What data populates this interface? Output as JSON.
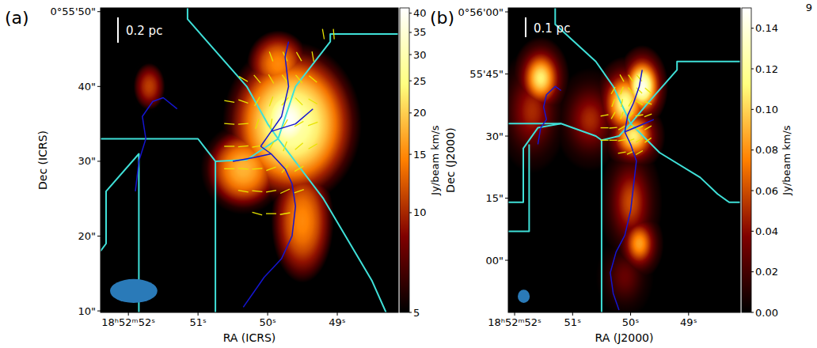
{
  "page_number": "9",
  "chart_data": [
    {
      "type": "image",
      "panel_label": "(a)",
      "scale_bar": "0.2 pc",
      "xlabel": "RA (ICRS)",
      "ylabel": "Dec (ICRS)",
      "xlim": [
        52.4,
        48.125
      ],
      "xticks": [
        {
          "value": 52,
          "label": "18ʰ52ᵐ52ˢ"
        },
        {
          "value": 51,
          "label": "51ˢ"
        },
        {
          "value": 50,
          "label": "50ˢ"
        },
        {
          "value": 49,
          "label": "49ˢ"
        }
      ],
      "ylim": [
        9.8,
        50.5
      ],
      "yticks": [
        {
          "value": 50,
          "label": "0°55'50\""
        },
        {
          "value": 40,
          "label": "40\""
        },
        {
          "value": 30,
          "label": "30\""
        },
        {
          "value": 20,
          "label": "20\""
        },
        {
          "value": 10,
          "label": "10\""
        }
      ],
      "colorbar": {
        "label": "Jy/beam km/s",
        "range": [
          5,
          41.5
        ],
        "ticks": [
          5,
          10,
          15,
          20,
          25,
          30,
          35,
          40
        ],
        "log": true
      },
      "beam": [
        10.2,
        3.2
      ],
      "sources": [
        {
          "ra": 51.7,
          "dec": 40,
          "peak": 11,
          "dra": 0.18,
          "ddec": 2.5
        },
        {
          "ra": 49.5,
          "dec": 22,
          "peak": 15,
          "dra": 0.3,
          "ddec": 5.5
        },
        {
          "ra": 49.85,
          "dec": 43,
          "peak": 15,
          "dra": 0.3,
          "ddec": 3
        },
        {
          "ra": 50.35,
          "dec": 29,
          "peak": 18,
          "dra": 0.35,
          "ddec": 3.5
        },
        {
          "ra": 49.65,
          "dec": 35,
          "peak": 30,
          "dra": 0.5,
          "ddec": 5.5
        },
        {
          "ra": 49.7,
          "dec": 35.5,
          "peak": 41,
          "dra": 0.25,
          "ddec": 3
        }
      ],
      "cyan_lines": [
        [
          [
            51.15,
            50.5
          ],
          [
            51.15,
            49
          ],
          [
            50.3,
            40
          ],
          [
            50.0,
            35
          ],
          [
            49.85,
            33
          ]
        ],
        [
          [
            48.125,
            47
          ],
          [
            49.1,
            47
          ],
          [
            49.1,
            46
          ],
          [
            49.6,
            40
          ],
          [
            49.85,
            33
          ]
        ],
        [
          [
            52.4,
            33
          ],
          [
            51.0,
            33
          ],
          [
            50.75,
            30
          ],
          [
            50.75,
            9.8
          ]
        ],
        [
          [
            50.75,
            30
          ],
          [
            50.3,
            30.2
          ],
          [
            49.85,
            33
          ]
        ],
        [
          [
            49.85,
            33
          ],
          [
            49.2,
            25
          ],
          [
            48.5,
            14
          ],
          [
            48.3,
            9.8
          ]
        ],
        [
          [
            52.4,
            18
          ],
          [
            52.32,
            19
          ],
          [
            52.32,
            26
          ],
          [
            51.85,
            31
          ],
          [
            51.85,
            9.8
          ]
        ]
      ],
      "filaments": [
        [
          [
            50.35,
            10.5
          ],
          [
            50.2,
            12.5
          ],
          [
            50.05,
            14.5
          ],
          [
            49.8,
            17
          ],
          [
            49.65,
            20
          ],
          [
            49.6,
            24
          ],
          [
            49.65,
            27
          ],
          [
            49.75,
            29
          ],
          [
            49.95,
            31
          ],
          [
            50.1,
            32
          ]
        ],
        [
          [
            50.1,
            32
          ],
          [
            49.95,
            34
          ],
          [
            49.8,
            36
          ],
          [
            49.7,
            40
          ],
          [
            49.75,
            44
          ],
          [
            49.7,
            46
          ]
        ],
        [
          [
            49.95,
            34
          ],
          [
            49.6,
            35
          ],
          [
            49.35,
            37
          ]
        ],
        [
          [
            50.5,
            30
          ],
          [
            50.2,
            30.5
          ],
          [
            49.95,
            31
          ]
        ],
        [
          [
            51.9,
            26
          ],
          [
            51.85,
            30
          ],
          [
            51.75,
            33
          ],
          [
            51.8,
            36
          ],
          [
            51.65,
            38
          ],
          [
            51.5,
            38.5
          ],
          [
            51.3,
            37
          ]
        ]
      ],
      "vectors": [
        [
          49.95,
          44,
          20
        ],
        [
          49.75,
          44,
          25
        ],
        [
          49.55,
          44,
          30
        ],
        [
          49.35,
          44,
          10
        ],
        [
          50.35,
          41,
          60
        ],
        [
          50.15,
          41,
          40
        ],
        [
          49.95,
          41,
          30
        ],
        [
          49.75,
          41,
          35
        ],
        [
          49.55,
          41,
          40
        ],
        [
          49.35,
          41,
          50
        ],
        [
          50.55,
          38,
          80
        ],
        [
          50.35,
          38,
          70
        ],
        [
          50.15,
          38,
          150
        ],
        [
          49.95,
          38,
          160
        ],
        [
          49.75,
          38,
          140
        ],
        [
          49.55,
          38,
          45
        ],
        [
          49.35,
          38,
          60
        ],
        [
          50.55,
          35,
          85
        ],
        [
          50.35,
          35,
          95
        ],
        [
          50.15,
          35,
          160
        ],
        [
          49.95,
          35,
          170
        ],
        [
          49.75,
          35,
          150
        ],
        [
          49.55,
          35,
          120
        ],
        [
          49.35,
          35,
          110
        ],
        [
          50.55,
          32,
          90
        ],
        [
          50.35,
          32,
          95
        ],
        [
          50.15,
          32,
          100
        ],
        [
          49.95,
          32,
          150
        ],
        [
          49.75,
          32,
          160
        ],
        [
          49.55,
          32,
          130
        ],
        [
          49.35,
          32,
          120
        ],
        [
          50.55,
          29,
          90
        ],
        [
          50.35,
          29,
          85
        ],
        [
          50.15,
          29,
          95
        ],
        [
          49.95,
          29,
          110
        ],
        [
          49.75,
          29,
          140
        ],
        [
          49.55,
          29,
          120
        ],
        [
          50.35,
          26,
          80
        ],
        [
          50.15,
          26,
          85
        ],
        [
          49.95,
          26,
          100
        ],
        [
          49.75,
          26,
          115
        ],
        [
          49.55,
          26,
          110
        ],
        [
          50.15,
          23,
          75
        ],
        [
          49.95,
          23,
          90
        ],
        [
          49.75,
          23,
          100
        ],
        [
          49.2,
          47,
          10
        ],
        [
          49.05,
          47,
          5
        ]
      ]
    },
    {
      "type": "image",
      "panel_label": "(b)",
      "scale_bar": "0.1 pc",
      "xlabel": "RA (J2000)",
      "ylabel": "Dec (J2000)",
      "xlim": [
        52.11,
        48.11
      ],
      "xticks": [
        {
          "value": 52,
          "label": "18ʰ52ᵐ52ˢ"
        },
        {
          "value": 51,
          "label": "51ˢ"
        },
        {
          "value": 50,
          "label": "50ˢ"
        },
        {
          "value": 49,
          "label": "49ˢ"
        }
      ],
      "ylim": [
        -12.6,
        60.96
      ],
      "yticks": [
        {
          "value": 60,
          "label": "0°56'00\""
        },
        {
          "value": 45,
          "label": "55'45\""
        },
        {
          "value": 30,
          "label": "30\""
        },
        {
          "value": 15,
          "label": "15\""
        },
        {
          "value": 0,
          "label": "00\""
        }
      ],
      "colorbar": {
        "label": "Jy/beam km/s",
        "range": [
          0,
          0.15
        ],
        "ticks": [
          {
            "value": 0,
            "label": "0.00"
          },
          {
            "value": 0.02,
            "label": "0.02"
          },
          {
            "value": 0.04,
            "label": "0.04"
          },
          {
            "value": 0.06,
            "label": "0.06"
          },
          {
            "value": 0.08,
            "label": "0.08"
          },
          {
            "value": 0.1,
            "label": "0.10"
          },
          {
            "value": 0.12,
            "label": "0.12"
          },
          {
            "value": 0.14,
            "label": "0.14"
          }
        ]
      },
      "beam": [
        3.1,
        3.2
      ],
      "sources": [
        {
          "ra": 50.1,
          "dec": -4,
          "peak": 0.03,
          "dra": 0.2,
          "ddec": 4
        },
        {
          "ra": 51.7,
          "dec": 36,
          "peak": 0.05,
          "dra": 0.25,
          "ddec": 6
        },
        {
          "ra": 50.7,
          "dec": 34,
          "peak": 0.05,
          "dra": 0.25,
          "ddec": 5
        },
        {
          "ra": 50.0,
          "dec": 14,
          "peak": 0.06,
          "dra": 0.22,
          "ddec": 6
        },
        {
          "ra": 49.85,
          "dec": 4,
          "peak": 0.085,
          "dra": 0.17,
          "ddec": 3.5
        },
        {
          "ra": 51.55,
          "dec": 44,
          "peak": 0.11,
          "dra": 0.2,
          "ddec": 4
        },
        {
          "ra": 49.95,
          "dec": 30,
          "peak": 0.11,
          "dra": 0.22,
          "ddec": 3.5
        },
        {
          "ra": 50.1,
          "dec": 38,
          "peak": 0.12,
          "dra": 0.22,
          "ddec": 4.5
        },
        {
          "ra": 49.8,
          "dec": 42,
          "peak": 0.145,
          "dra": 0.18,
          "ddec": 4
        }
      ],
      "cyan_lines": [
        [
          [
            51.3,
            60.96
          ],
          [
            51.3,
            57
          ],
          [
            50.6,
            48
          ],
          [
            50.3,
            42
          ],
          [
            50.0,
            33
          ]
        ],
        [
          [
            48.11,
            48
          ],
          [
            49.2,
            48
          ],
          [
            49.2,
            46
          ],
          [
            49.7,
            38
          ],
          [
            50.0,
            33
          ]
        ],
        [
          [
            52.11,
            33
          ],
          [
            51.2,
            33
          ],
          [
            50.6,
            30
          ],
          [
            50.5,
            29
          ],
          [
            50.5,
            -12.6
          ]
        ],
        [
          [
            50.5,
            29
          ],
          [
            50.2,
            30
          ],
          [
            50.0,
            33
          ]
        ],
        [
          [
            50.0,
            33
          ],
          [
            49.5,
            26
          ],
          [
            48.8,
            20
          ],
          [
            48.5,
            16
          ],
          [
            48.3,
            14
          ],
          [
            48.11,
            14
          ]
        ],
        [
          [
            52.11,
            14
          ],
          [
            51.85,
            14
          ],
          [
            51.85,
            27
          ],
          [
            51.6,
            32
          ],
          [
            51.2,
            33
          ]
        ],
        [
          [
            52.11,
            7
          ],
          [
            51.75,
            7
          ],
          [
            51.75,
            28
          ]
        ]
      ],
      "filaments": [
        [
          [
            50.2,
            -12
          ],
          [
            50.3,
            -8
          ],
          [
            50.35,
            -3
          ],
          [
            50.25,
            2
          ],
          [
            50.1,
            6
          ],
          [
            50.0,
            12
          ],
          [
            49.95,
            18
          ],
          [
            49.9,
            24
          ],
          [
            50.0,
            28
          ],
          [
            50.1,
            31
          ]
        ],
        [
          [
            50.1,
            31
          ],
          [
            50.05,
            35
          ],
          [
            49.95,
            38
          ],
          [
            49.85,
            42
          ],
          [
            49.8,
            46
          ]
        ],
        [
          [
            50.1,
            31
          ],
          [
            49.85,
            32.5
          ],
          [
            49.6,
            34
          ]
        ],
        [
          [
            51.6,
            28
          ],
          [
            51.55,
            32
          ],
          [
            51.45,
            34
          ],
          [
            51.5,
            37
          ],
          [
            51.45,
            40
          ],
          [
            51.3,
            42
          ],
          [
            51.2,
            41
          ]
        ]
      ],
      "vectors": [
        [
          50.15,
          44,
          30
        ],
        [
          50.0,
          44,
          35
        ],
        [
          49.85,
          44,
          40
        ],
        [
          50.3,
          41,
          150
        ],
        [
          50.15,
          41,
          160
        ],
        [
          50.0,
          41,
          40
        ],
        [
          49.85,
          41,
          45
        ],
        [
          49.7,
          41,
          50
        ],
        [
          50.3,
          38,
          160
        ],
        [
          50.15,
          38,
          170
        ],
        [
          50.0,
          38,
          150
        ],
        [
          49.85,
          38,
          60
        ],
        [
          49.7,
          38,
          70
        ],
        [
          50.45,
          35,
          100
        ],
        [
          50.3,
          35,
          150
        ],
        [
          50.15,
          35,
          160
        ],
        [
          50.0,
          35,
          140
        ],
        [
          49.85,
          35,
          100
        ],
        [
          49.7,
          35,
          110
        ],
        [
          50.45,
          32,
          90
        ],
        [
          50.3,
          32,
          95
        ],
        [
          50.15,
          32,
          120
        ],
        [
          50.0,
          32,
          130
        ],
        [
          49.85,
          32,
          115
        ],
        [
          49.7,
          32,
          120
        ],
        [
          50.45,
          29,
          90
        ],
        [
          50.3,
          29,
          90
        ],
        [
          50.15,
          29,
          100
        ],
        [
          50.0,
          29,
          110
        ],
        [
          49.85,
          29,
          120
        ],
        [
          49.7,
          29,
          125
        ],
        [
          50.15,
          26,
          100
        ],
        [
          50.0,
          26,
          115
        ],
        [
          49.85,
          26,
          120
        ]
      ]
    }
  ]
}
